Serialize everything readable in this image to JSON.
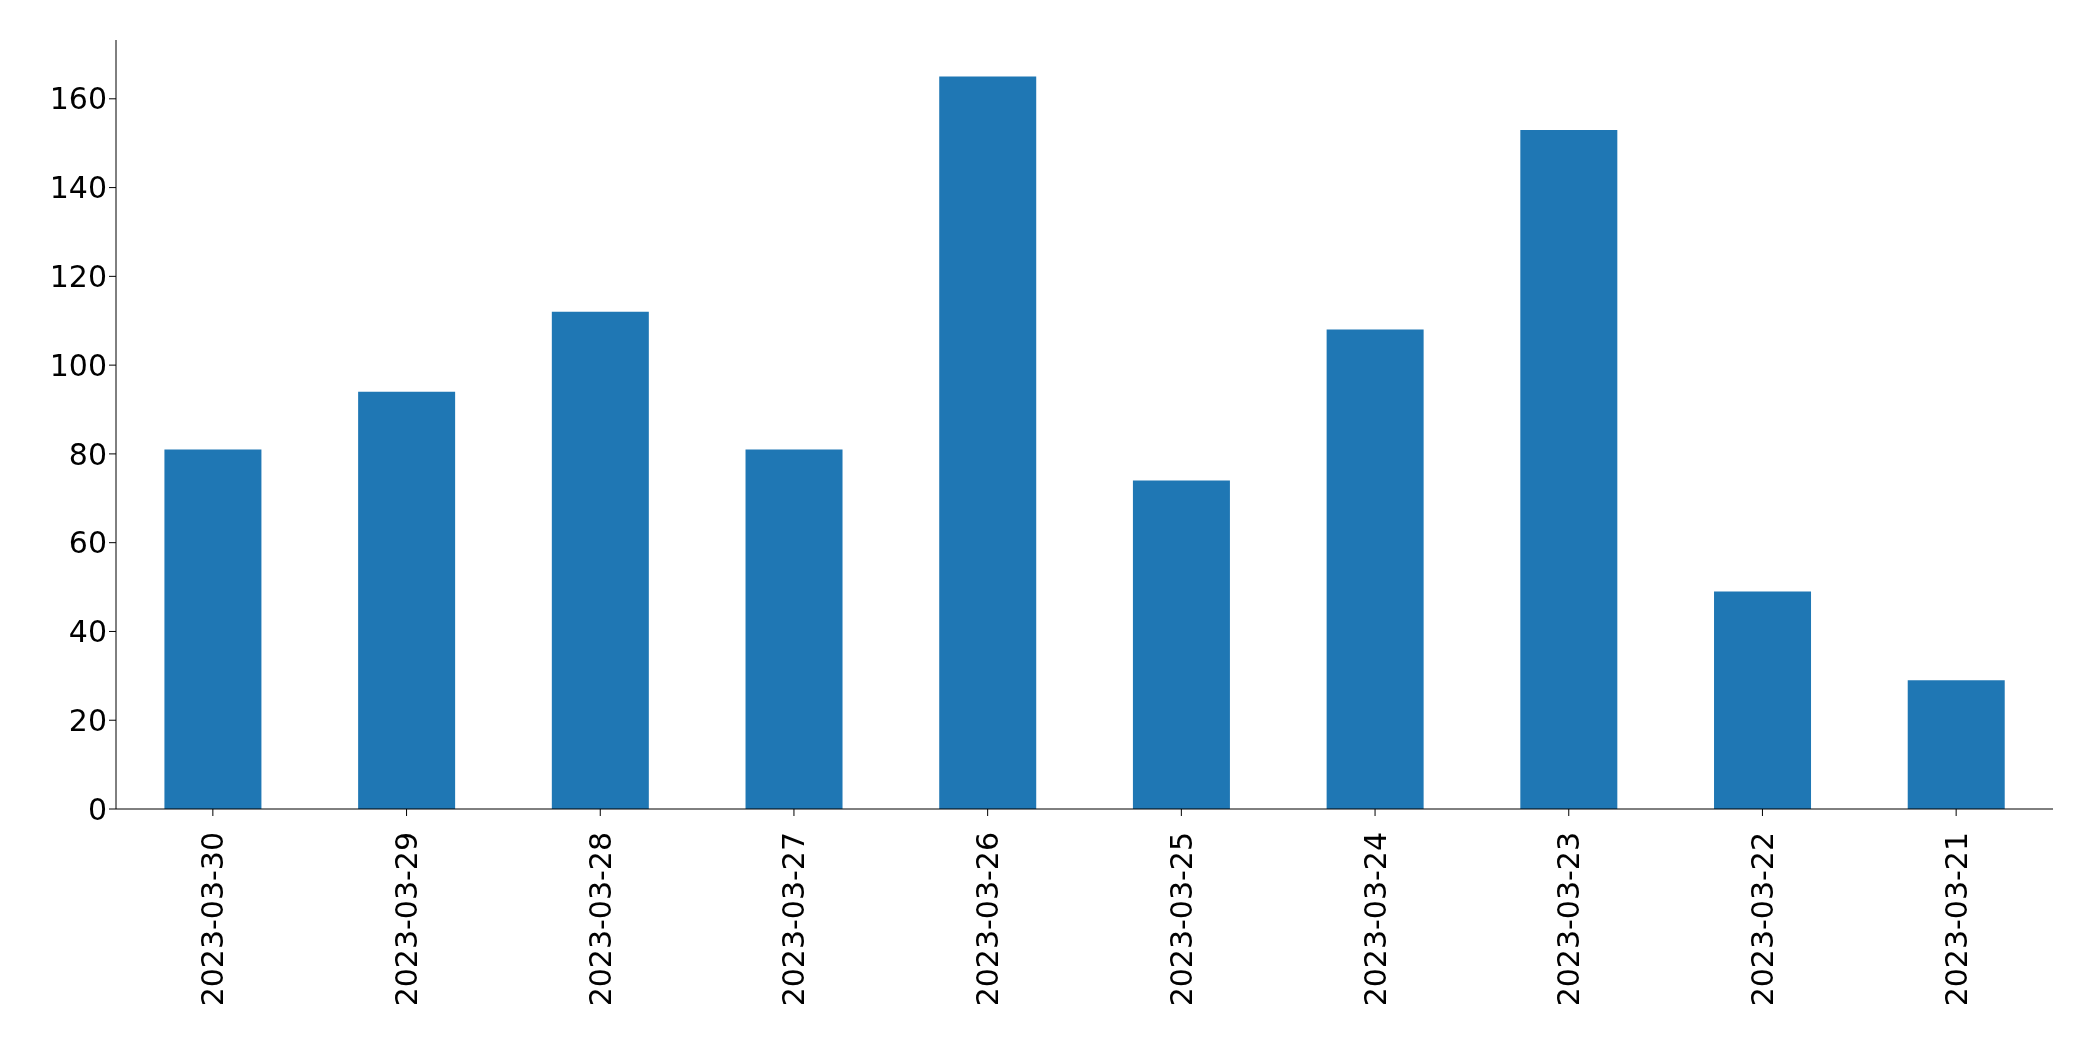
{
  "chart_data": {
    "type": "bar",
    "categories": [
      "2023-03-30",
      "2023-03-29",
      "2023-03-28",
      "2023-03-27",
      "2023-03-26",
      "2023-03-25",
      "2023-03-24",
      "2023-03-23",
      "2023-03-22",
      "2023-03-21"
    ],
    "values": [
      81,
      94,
      112,
      81,
      165,
      74,
      108,
      153,
      49,
      29
    ],
    "color": "#1f77b4",
    "ylim": [
      0,
      173.25
    ],
    "yticks": [
      0,
      20,
      40,
      60,
      80,
      100,
      120,
      140,
      160
    ],
    "grid": false,
    "legend": false
  }
}
